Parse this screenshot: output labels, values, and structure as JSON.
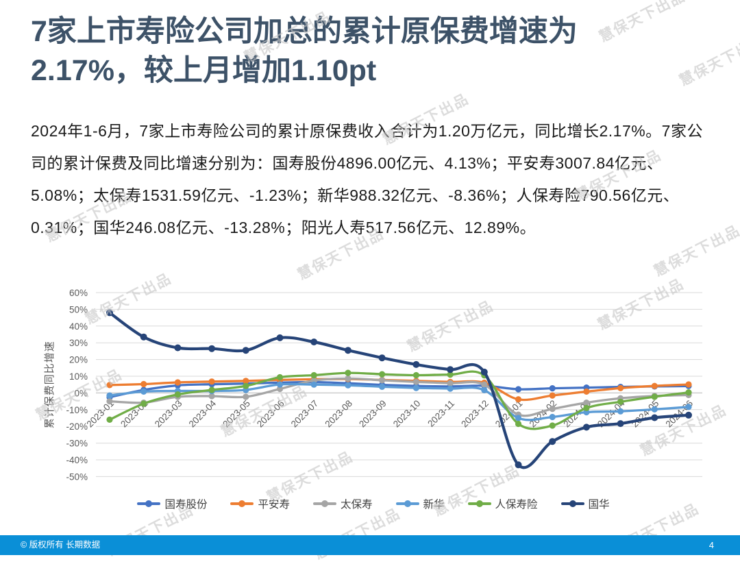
{
  "slide": {
    "title_lines": [
      "7家上市寿险公司加总的累计原保费增速为",
      "2.17%，较上月增加1.10pt"
    ],
    "title_color": "#3D5268",
    "body_text": "2024年1-6月，7家上市寿险公司的累计原保费收入合计为1.20万亿元，同比增长2.17%。7家公司的累计保费及同比增速分别为：国寿股份4896.00亿元、4.13%；平安寿3007.84亿元、5.08%；太保寿1531.59亿元、-1.23%；新华988.32亿元、-8.36%；人保寿险790.56亿元、0.31%；国华246.08亿元、-13.28%；阳光人寿517.56亿元、12.89%。",
    "watermark_text": "慧保天下出品",
    "footer_copyright": "© 版权所有 长期数据",
    "page_number": "4",
    "footer_bar_color": "#0A8FD7"
  },
  "chart_data": {
    "type": "line",
    "title": "",
    "xlabel": "",
    "ylabel": "累计保费同比增速",
    "ylim": [
      -50,
      60
    ],
    "ytick_step": 10,
    "ytick_labels": [
      "60%",
      "50%",
      "40%",
      "30%",
      "20%",
      "10%",
      "0%",
      "-10%",
      "-20%",
      "-30%",
      "-40%",
      "-50%"
    ],
    "grid": true,
    "smoothed": true,
    "legend_position": "bottom",
    "categories": [
      "2023-01",
      "2023-02",
      "2023-03",
      "2023-04",
      "2023-05",
      "2023-06",
      "2023-07",
      "2023-08",
      "2023-09",
      "2023-10",
      "2023-11",
      "2023-12",
      "2024-01",
      "2024-02",
      "2024-03",
      "2024-04",
      "2024-05",
      "2024-06"
    ],
    "series": [
      {
        "name": "国寿股份",
        "color": "#4472C4",
        "values": [
          -2.5,
          1.8,
          4.5,
          5.2,
          5.6,
          6.2,
          6.5,
          5.8,
          4.8,
          4.2,
          3.9,
          4.3,
          2.2,
          2.8,
          3.2,
          3.6,
          3.9,
          4.13
        ]
      },
      {
        "name": "平安寿",
        "color": "#ED7D31",
        "values": [
          4.7,
          5.3,
          6.3,
          6.8,
          7.2,
          7.8,
          8.2,
          8.3,
          7.8,
          7.2,
          6.6,
          6.1,
          -3.8,
          -1.5,
          0.8,
          2.9,
          4.2,
          5.08
        ]
      },
      {
        "name": "太保寿",
        "color": "#A5A5A5",
        "values": [
          -5.0,
          -5.8,
          -2.3,
          -1.9,
          -2.3,
          2.4,
          7.4,
          8.6,
          7.6,
          6.6,
          5.8,
          5.0,
          -13.0,
          -9.5,
          -5.8,
          -3.2,
          -1.8,
          -1.23
        ]
      },
      {
        "name": "新华",
        "color": "#5B9BD5",
        "values": [
          -1.5,
          0.8,
          1.2,
          1.2,
          1.8,
          5.1,
          5.0,
          4.6,
          3.7,
          3.0,
          2.6,
          1.7,
          -15.0,
          -14.4,
          -11.5,
          -11.0,
          -9.8,
          -8.36
        ]
      },
      {
        "name": "人保寿险",
        "color": "#70AD47",
        "values": [
          -16.0,
          -6.4,
          -0.9,
          1.8,
          4.2,
          9.4,
          10.6,
          12.0,
          11.2,
          10.6,
          11.0,
          10.5,
          -18.5,
          -19.5,
          -9.0,
          -5.3,
          -2.3,
          0.31
        ]
      },
      {
        "name": "国华",
        "color": "#264478",
        "values": [
          48.0,
          33.5,
          27.0,
          26.5,
          25.5,
          33.0,
          30.5,
          25.5,
          21.0,
          17.0,
          14.0,
          12.5,
          -43.0,
          -29.0,
          -20.5,
          -18.3,
          -14.8,
          -13.28
        ]
      }
    ]
  }
}
